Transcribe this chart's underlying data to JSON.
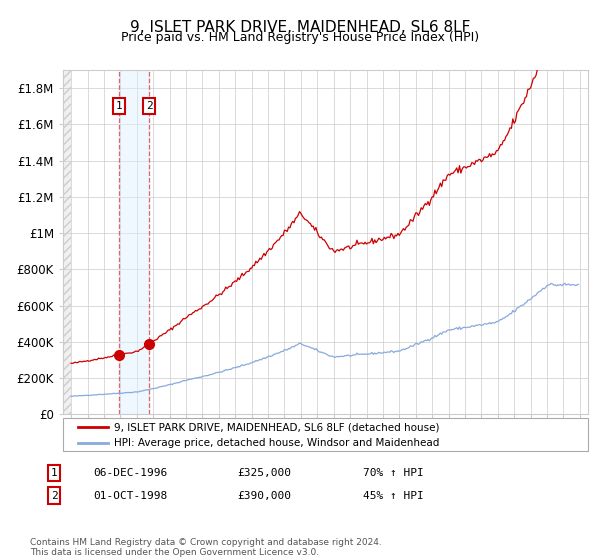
{
  "title": "9, ISLET PARK DRIVE, MAIDENHEAD, SL6 8LF",
  "subtitle": "Price paid vs. HM Land Registry's House Price Index (HPI)",
  "red_label": "9, ISLET PARK DRIVE, MAIDENHEAD, SL6 8LF (detached house)",
  "blue_label": "HPI: Average price, detached house, Windsor and Maidenhead",
  "sale1_date": "06-DEC-1996",
  "sale1_price": 325000,
  "sale1_hpi": "70% ↑ HPI",
  "sale1_x": 1996.917,
  "sale2_date": "01-OCT-1998",
  "sale2_price": 390000,
  "sale2_hpi": "45% ↑ HPI",
  "sale2_x": 1998.75,
  "footer": "Contains HM Land Registry data © Crown copyright and database right 2024.\nThis data is licensed under the Open Government Licence v3.0.",
  "ylim": [
    0,
    1900000
  ],
  "xlim": [
    1993.5,
    2025.5
  ],
  "yticks": [
    0,
    200000,
    400000,
    600000,
    800000,
    1000000,
    1200000,
    1400000,
    1600000,
    1800000
  ],
  "ytick_labels": [
    "£0",
    "£200K",
    "£400K",
    "£600K",
    "£800K",
    "£1M",
    "£1.2M",
    "£1.4M",
    "£1.6M",
    "£1.8M"
  ],
  "xticks": [
    1994,
    1995,
    1996,
    1997,
    1998,
    1999,
    2000,
    2001,
    2002,
    2003,
    2004,
    2005,
    2006,
    2007,
    2008,
    2009,
    2010,
    2011,
    2012,
    2013,
    2014,
    2015,
    2016,
    2017,
    2018,
    2019,
    2020,
    2021,
    2022,
    2023,
    2024,
    2025
  ],
  "grid_color": "#cccccc",
  "red_color": "#cc0000",
  "blue_color": "#88aadd",
  "sale_marker_color": "#cc0000",
  "vline_color": "#dd6666",
  "shade_color": "#ddeeff",
  "shade_alpha": 0.45
}
